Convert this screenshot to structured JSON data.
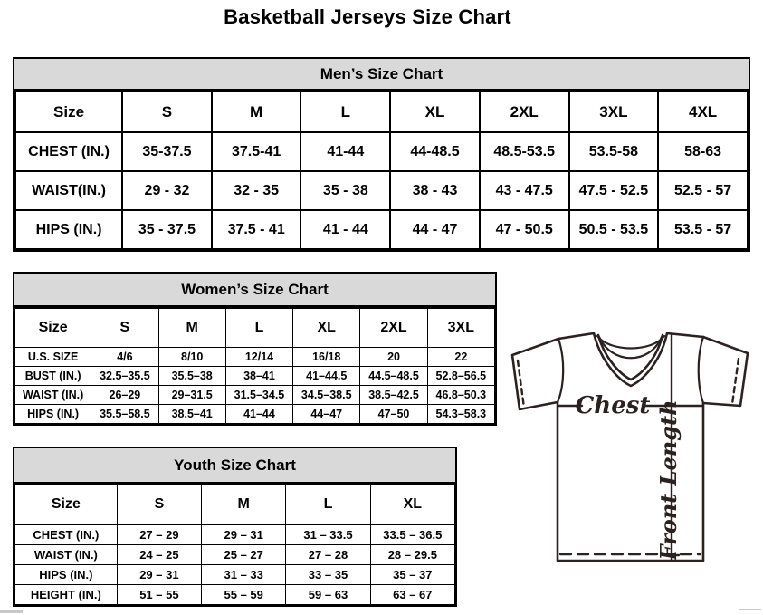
{
  "page_title": "Basketball Jerseys Size Chart",
  "colors": {
    "band_background": "#d9d9d9",
    "table_border": "#000000",
    "diagram_stroke": "#2b2220"
  },
  "tables": {
    "men": {
      "title": "Men’s Size Chart",
      "columns": [
        "Size",
        "S",
        "M",
        "L",
        "XL",
        "2XL",
        "3XL",
        "4XL"
      ],
      "rows": [
        {
          "label": "CHEST (IN.)",
          "values": [
            "35-37.5",
            "37.5-41",
            "41-44",
            "44-48.5",
            "48.5-53.5",
            "53.5-58",
            "58-63"
          ]
        },
        {
          "label": "WAIST(IN.)",
          "values": [
            "29 - 32",
            "32 - 35",
            "35 - 38",
            "38 - 43",
            "43 - 47.5",
            "47.5 - 52.5",
            "52.5 - 57"
          ]
        },
        {
          "label": "HIPS (IN.)",
          "values": [
            "35 - 37.5",
            "37.5 - 41",
            "41 - 44",
            "44 - 47",
            "47 - 50.5",
            "50.5 - 53.5",
            "53.5 - 57"
          ]
        }
      ]
    },
    "women": {
      "title": "Women’s Size Chart",
      "columns": [
        "Size",
        "S",
        "M",
        "L",
        "XL",
        "2XL",
        "3XL"
      ],
      "rows": [
        {
          "label": "U.S. SIZE",
          "values": [
            "4/6",
            "8/10",
            "12/14",
            "16/18",
            "20",
            "22"
          ]
        },
        {
          "label": "BUST (IN.)",
          "values": [
            "32.5–35.5",
            "35.5–38",
            "38–41",
            "41–44.5",
            "44.5–48.5",
            "52.8–56.5"
          ]
        },
        {
          "label": "WAIST (IN.)",
          "values": [
            "26–29",
            "29–31.5",
            "31.5–34.5",
            "34.5–38.5",
            "38.5–42.5",
            "46.8–50.3"
          ]
        },
        {
          "label": "HIPS (IN.)",
          "values": [
            "35.5–58.5",
            "38.5–41",
            "41–44",
            "44–47",
            "47–50",
            "54.3–58.3"
          ]
        }
      ]
    },
    "youth": {
      "title": "Youth Size Chart",
      "columns": [
        "Size",
        "S",
        "M",
        "L",
        "XL"
      ],
      "rows": [
        {
          "label": "CHEST (IN.)",
          "values": [
            "27 – 29",
            "29 – 31",
            "31 – 33.5",
            "33.5 – 36.5"
          ]
        },
        {
          "label": "WAIST (IN.)",
          "values": [
            "24 – 25",
            "25 – 27",
            "27 – 28",
            "28 – 29.5"
          ]
        },
        {
          "label": "HIPS (IN.)",
          "values": [
            "29 – 31",
            "31 – 33",
            "33 – 35",
            "35 – 37"
          ]
        },
        {
          "label": "HEIGHT (IN.)",
          "values": [
            "51 – 55",
            "55 – 59",
            "59 – 63",
            "63 – 67"
          ]
        }
      ]
    }
  },
  "diagram": {
    "chest_label": "Chest",
    "front_length_label": "Front Length"
  }
}
